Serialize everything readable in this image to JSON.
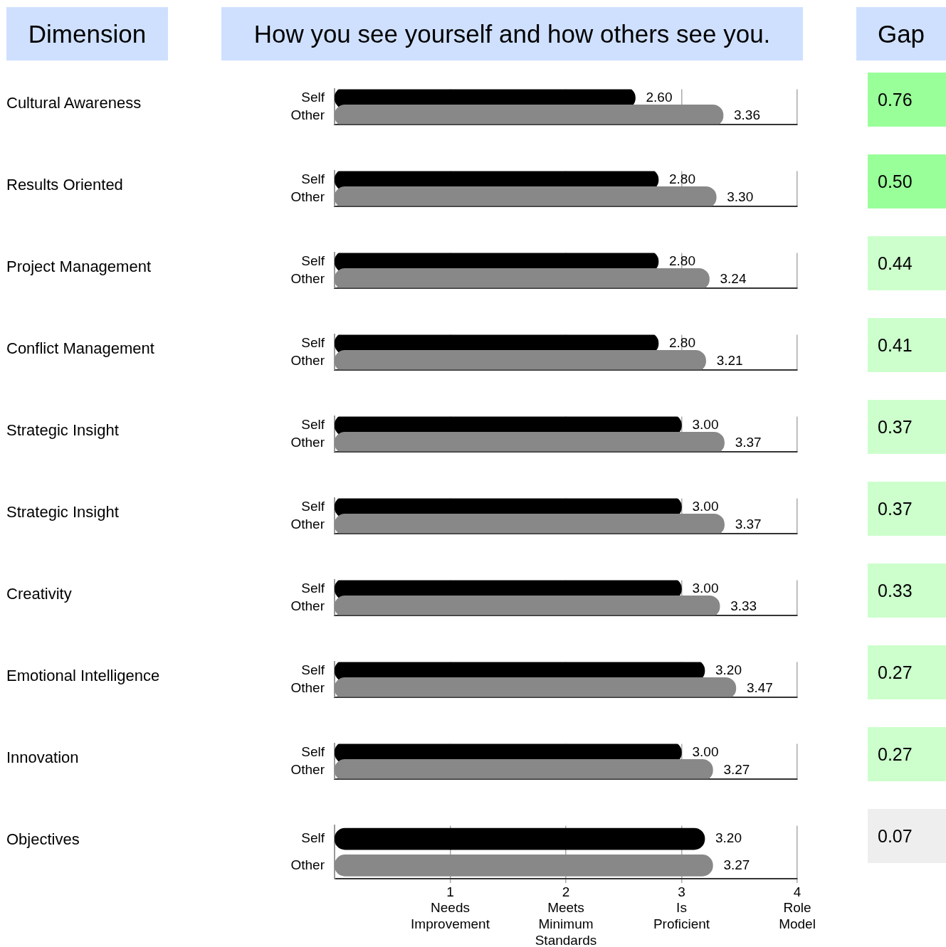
{
  "chart_data": [
    {
      "type": "other",
      "title": "How you see yourself and how others see you.",
      "annotations": [
        "Dimension"
      ]
    },
    {
      "type": "bar",
      "orientation": "horizontal",
      "ylabel": "Cultural Awareness",
      "categories": [
        "Self",
        "Other"
      ],
      "values": [
        2.6,
        3.36
      ],
      "value_labels": [
        "2.60",
        "3.36"
      ],
      "colors": [
        "#000000",
        "#888888"
      ],
      "xlim": [
        0,
        4
      ],
      "xticks": [
        1,
        2,
        3,
        4
      ],
      "grid": "x",
      "tick_labels": "y"
    },
    {
      "type": "bar",
      "orientation": "horizontal",
      "ylabel": "Results Oriented",
      "categories": [
        "Self",
        "Other"
      ],
      "values": [
        2.8,
        3.3
      ],
      "value_labels": [
        "2.80",
        "3.30"
      ],
      "colors": [
        "#000000",
        "#888888"
      ],
      "xlim": [
        0,
        4
      ],
      "xticks": [
        1,
        2,
        3,
        4
      ],
      "grid": "x",
      "tick_labels": "y"
    },
    {
      "type": "bar",
      "orientation": "horizontal",
      "ylabel": "Project Management",
      "categories": [
        "Self",
        "Other"
      ],
      "values": [
        2.8,
        3.24
      ],
      "value_labels": [
        "2.80",
        "3.24"
      ],
      "colors": [
        "#000000",
        "#888888"
      ],
      "xlim": [
        0,
        4
      ],
      "xticks": [
        1,
        2,
        3,
        4
      ],
      "grid": "x",
      "tick_labels": "y"
    },
    {
      "type": "bar",
      "orientation": "horizontal",
      "ylabel": "Conflict Management",
      "categories": [
        "Self",
        "Other"
      ],
      "values": [
        2.8,
        3.21
      ],
      "value_labels": [
        "2.80",
        "3.21"
      ],
      "colors": [
        "#000000",
        "#888888"
      ],
      "xlim": [
        0,
        4
      ],
      "xticks": [
        1,
        2,
        3,
        4
      ],
      "grid": "x",
      "tick_labels": "y"
    },
    {
      "type": "bar",
      "orientation": "horizontal",
      "ylabel": "Strategic Insight",
      "categories": [
        "Self",
        "Other"
      ],
      "values": [
        3.0,
        3.37
      ],
      "value_labels": [
        "3.00",
        "3.37"
      ],
      "colors": [
        "#000000",
        "#888888"
      ],
      "xlim": [
        0,
        4
      ],
      "xticks": [
        1,
        2,
        3,
        4
      ],
      "grid": "x",
      "tick_labels": "y"
    },
    {
      "type": "bar",
      "orientation": "horizontal",
      "ylabel": "Strategic Insight",
      "categories": [
        "Self",
        "Other"
      ],
      "values": [
        3.0,
        3.37
      ],
      "value_labels": [
        "3.00",
        "3.37"
      ],
      "colors": [
        "#000000",
        "#888888"
      ],
      "xlim": [
        0,
        4
      ],
      "xticks": [
        1,
        2,
        3,
        4
      ],
      "grid": "x",
      "tick_labels": "y"
    },
    {
      "type": "bar",
      "orientation": "horizontal",
      "ylabel": "Creativity",
      "categories": [
        "Self",
        "Other"
      ],
      "values": [
        3.0,
        3.33
      ],
      "value_labels": [
        "3.00",
        "3.33"
      ],
      "colors": [
        "#000000",
        "#888888"
      ],
      "xlim": [
        0,
        4
      ],
      "xticks": [
        1,
        2,
        3,
        4
      ],
      "grid": "x",
      "tick_labels": "y"
    },
    {
      "type": "bar",
      "orientation": "horizontal",
      "ylabel": "Emotional Intelligence",
      "categories": [
        "Self",
        "Other"
      ],
      "values": [
        3.2,
        3.47
      ],
      "value_labels": [
        "3.20",
        "3.47"
      ],
      "colors": [
        "#000000",
        "#888888"
      ],
      "xlim": [
        0,
        4
      ],
      "xticks": [
        1,
        2,
        3,
        4
      ],
      "grid": "x",
      "tick_labels": "y"
    },
    {
      "type": "bar",
      "orientation": "horizontal",
      "ylabel": "Innovation",
      "categories": [
        "Self",
        "Other"
      ],
      "values": [
        3.0,
        3.27
      ],
      "value_labels": [
        "3.00",
        "3.27"
      ],
      "colors": [
        "#000000",
        "#888888"
      ],
      "xlim": [
        0,
        4
      ],
      "xticks": [
        1,
        2,
        3,
        4
      ],
      "grid": "x",
      "tick_labels": "y"
    },
    {
      "type": "bar",
      "orientation": "horizontal",
      "ylabel": "Objectives",
      "categories": [
        "Self",
        "Other"
      ],
      "values": [
        3.2,
        3.27
      ],
      "value_labels": [
        "3.20",
        "3.27"
      ],
      "colors": [
        "#000000",
        "#888888"
      ],
      "xlim": [
        0,
        4
      ],
      "xticks": [
        {
          "value": 1,
          "label": "1\nNeeds\nImprovement"
        },
        {
          "value": 2,
          "label": "2\nMeets\nMinimum\nStandards"
        },
        {
          "value": 3,
          "label": "3\nIs\nProficient"
        },
        {
          "value": 4,
          "label": "4\nRole\nModel"
        }
      ],
      "grid": "x"
    },
    {
      "type": "other",
      "title": "Gap",
      "annotations": [
        "0.76",
        "0.50",
        "0.44",
        "0.41",
        "0.37",
        "0.37",
        "0.33",
        "0.27",
        "0.27",
        "0.07"
      ]
    }
  ]
}
